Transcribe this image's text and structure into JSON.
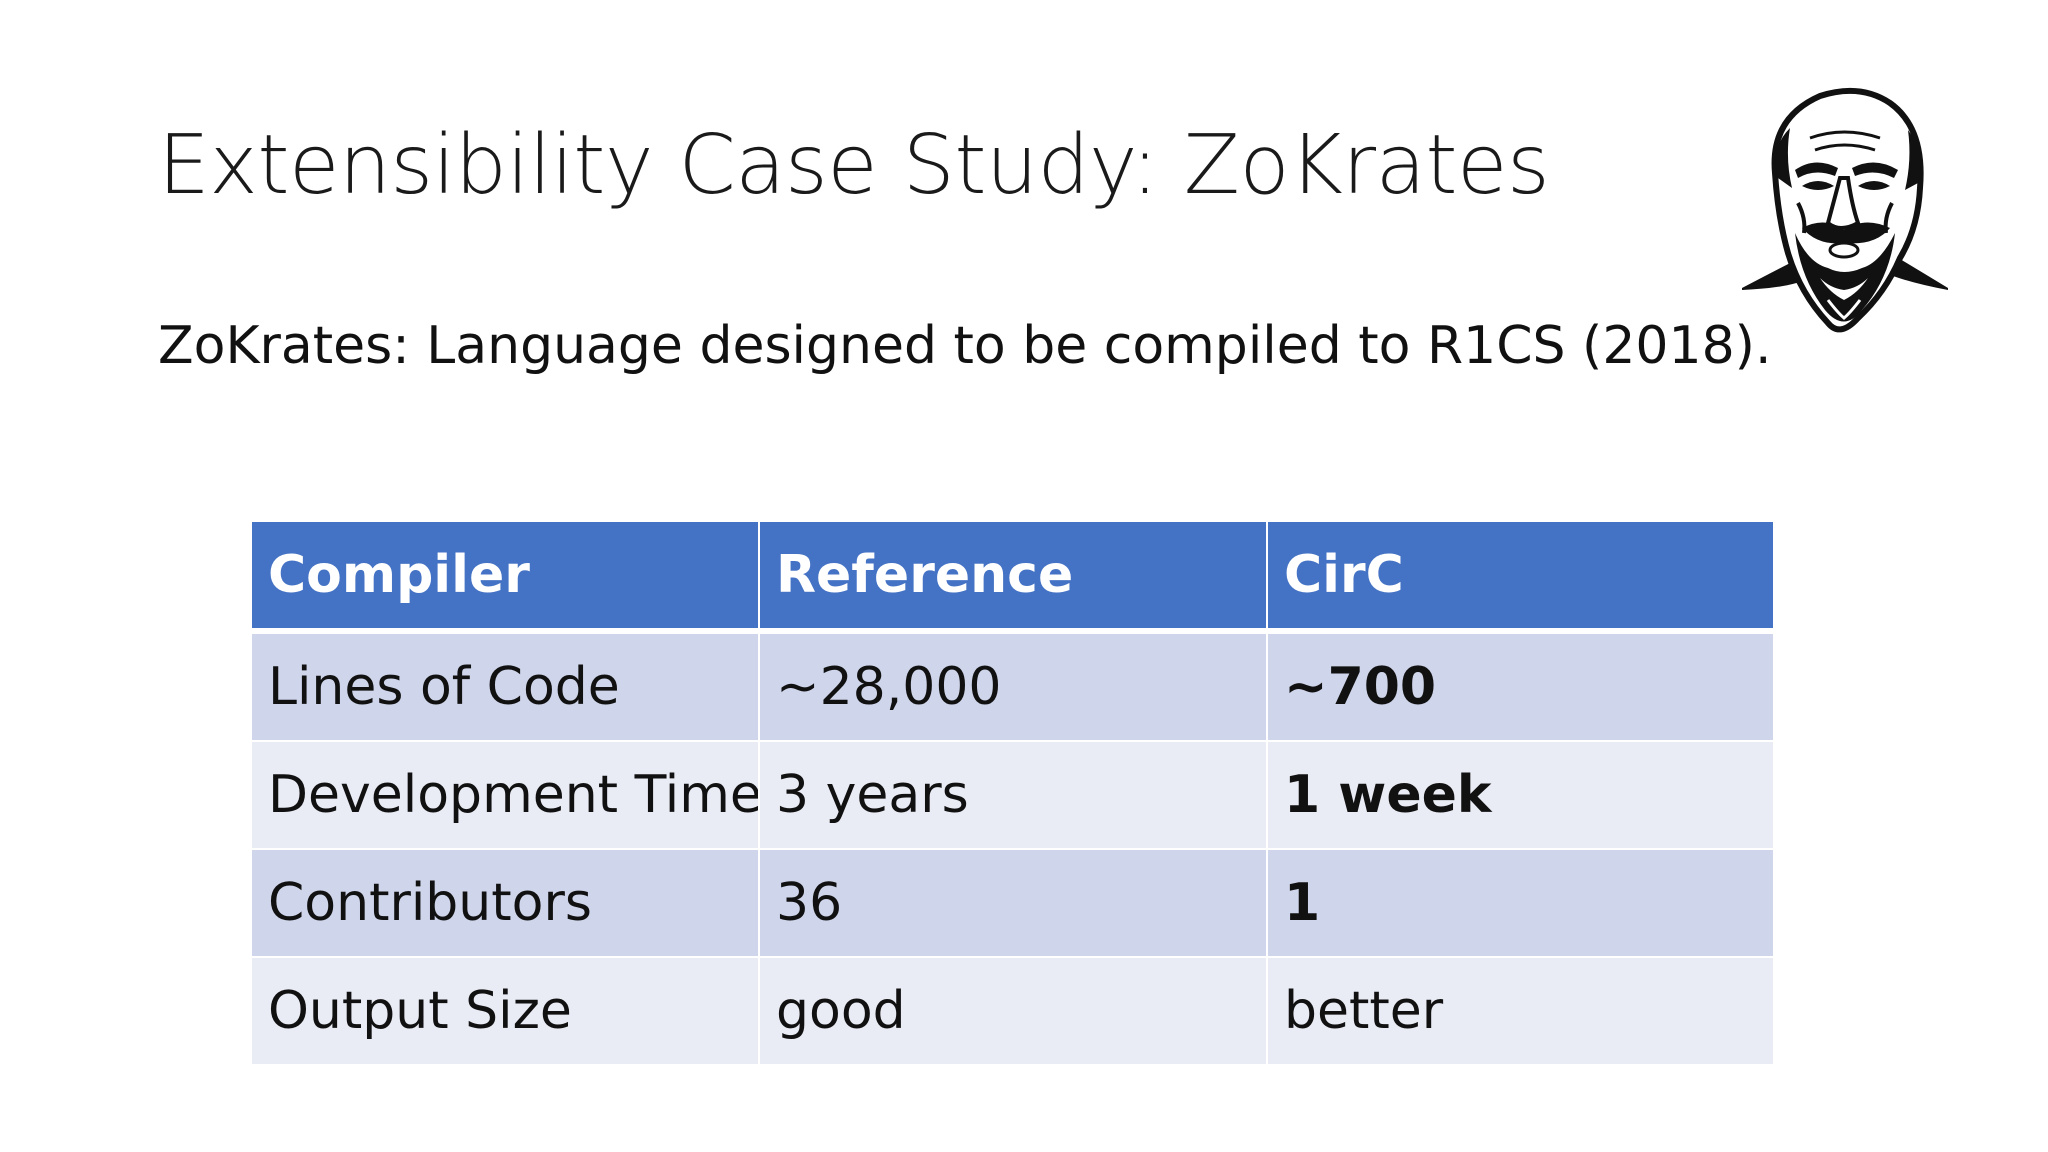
{
  "slide": {
    "title": "Extensibility Case Study: ZoKrates",
    "subtitle": "ZoKrates: Language designed to be compiled to R1CS (2018)."
  },
  "logo": {
    "icon": "socrates-bust-icon"
  },
  "table": {
    "headers": [
      "Compiler",
      "Reference",
      "CirC"
    ],
    "rows": [
      [
        "Lines of Code",
        "~28,000",
        "~700"
      ],
      [
        "Development Time",
        "3 years",
        "1 week"
      ],
      [
        "Contributors",
        "36",
        "1"
      ],
      [
        "Output Size",
        "good",
        "better"
      ]
    ]
  },
  "colors": {
    "header_bg": "#4472c4",
    "row_odd_bg": "#cfd5ea",
    "row_even_bg": "#e9ebf5"
  }
}
